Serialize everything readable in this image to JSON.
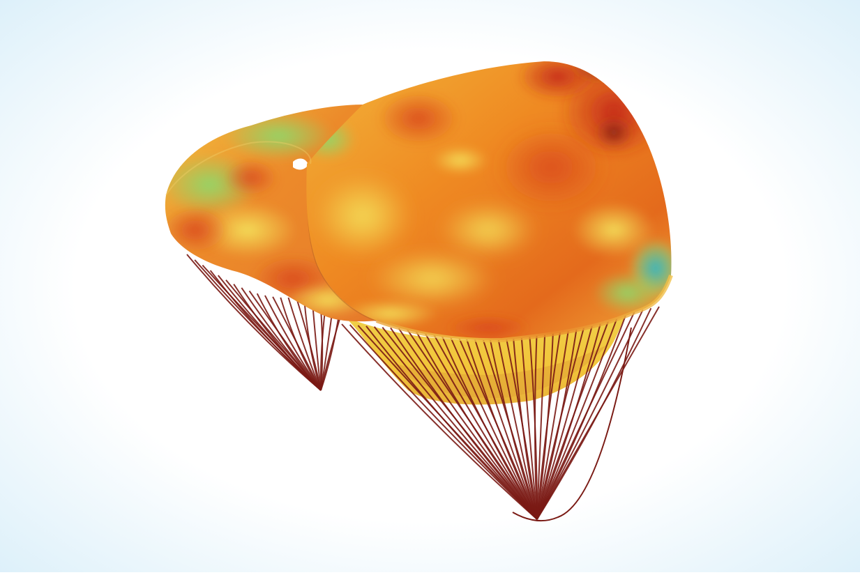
{
  "figure": {
    "subject": "mitral-valve-leaflets-with-chordae-tendineae",
    "colors": {
      "background_center": "#ffffff",
      "background_edge": "#d8eef9",
      "chordae": "#7a1a14",
      "surface_hot": "#c9261a",
      "surface_warm": "#ef8a22",
      "surface_mid": "#f2c53a",
      "surface_light": "#e4e65a",
      "surface_cool": "#7fd36a",
      "surface_cold": "#2fb3c9"
    }
  }
}
